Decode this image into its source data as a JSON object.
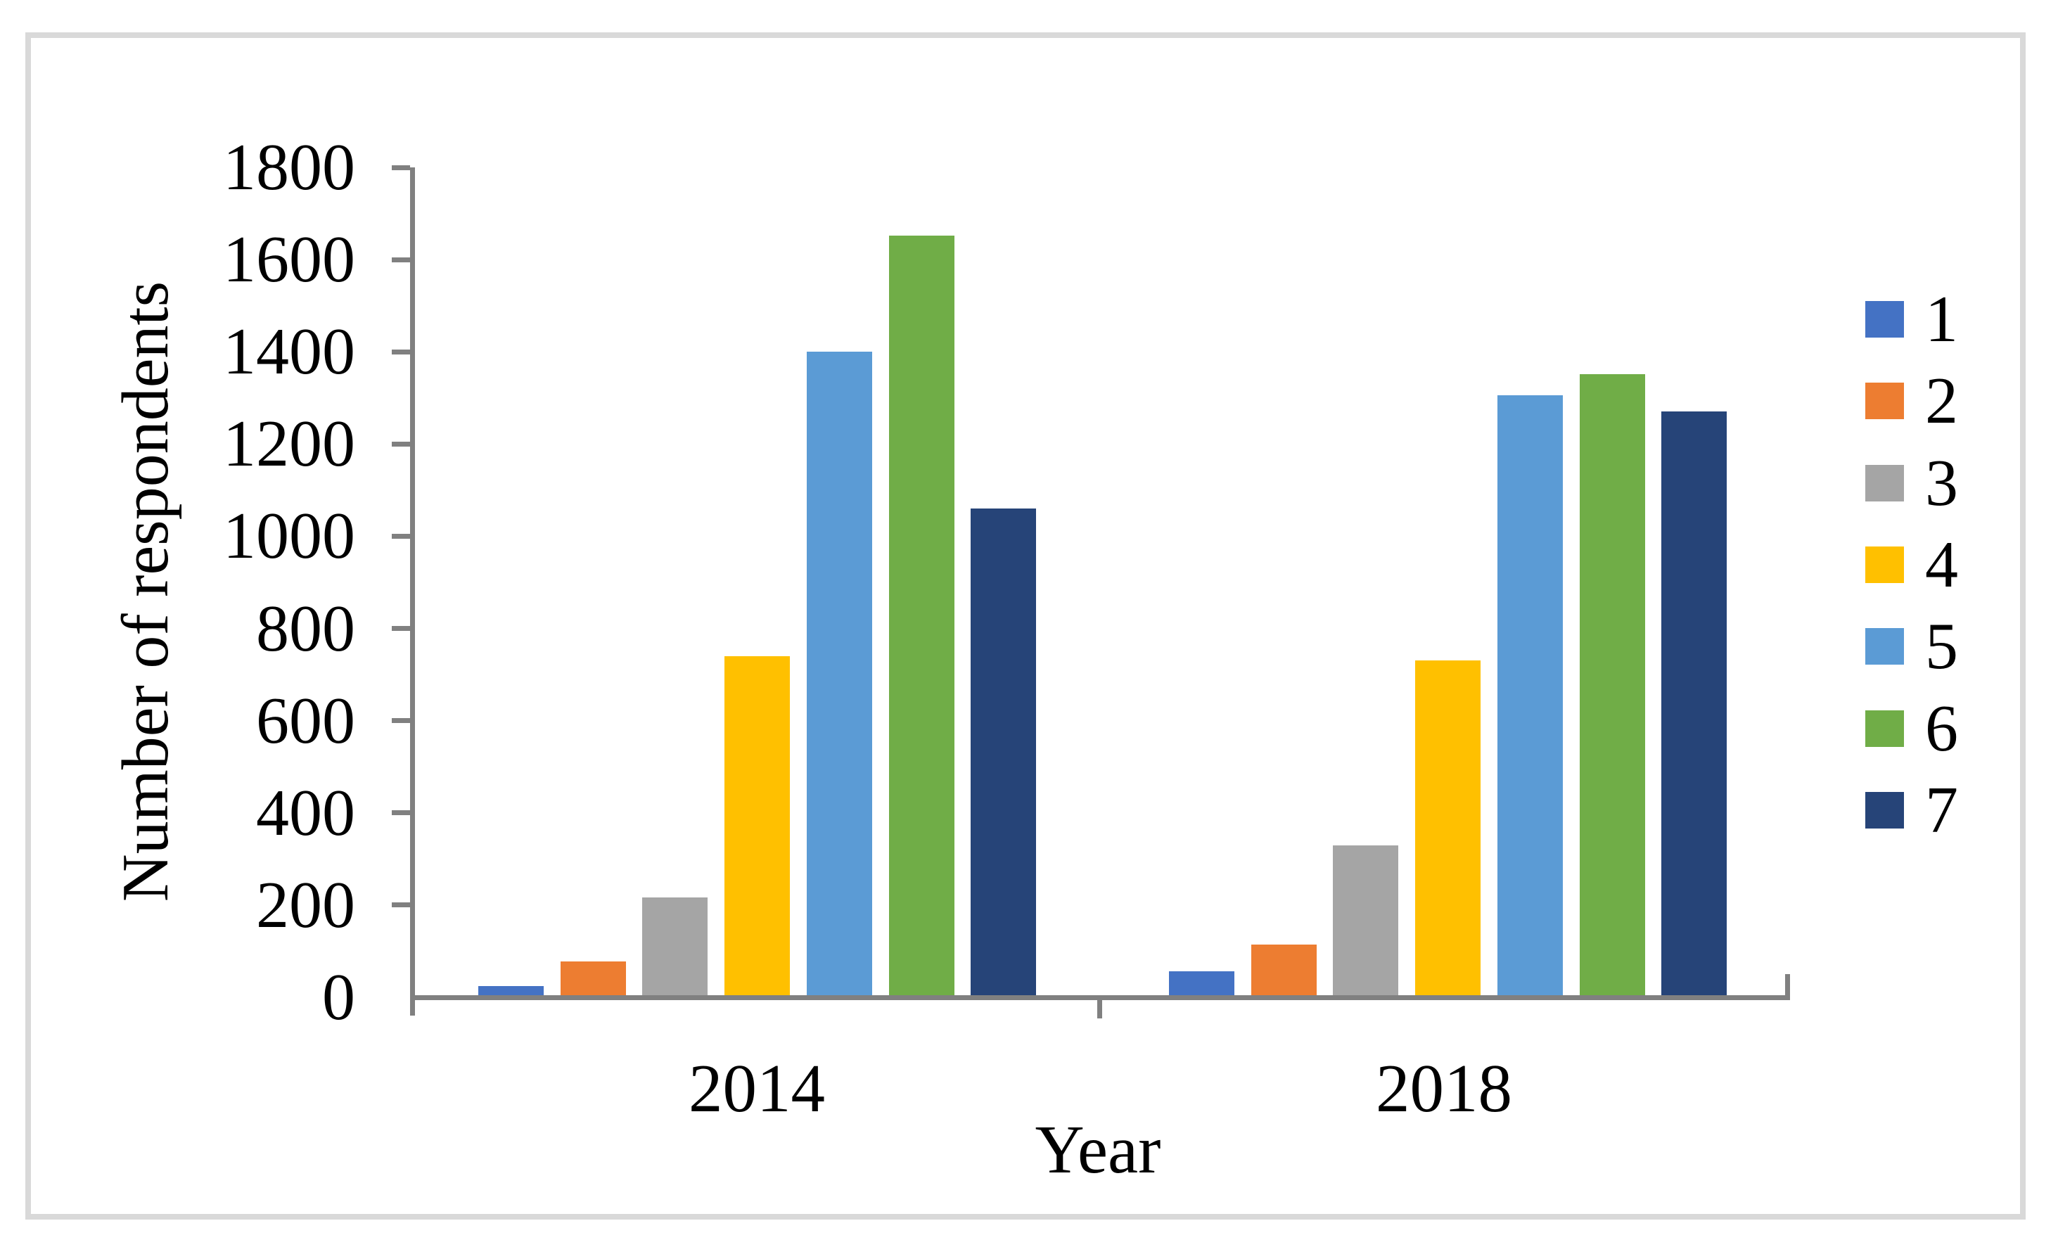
{
  "figure": {
    "background": "#FFFFFF",
    "border_color": "#D9D9D9",
    "axis_color": "#808080",
    "text_color": "#000000"
  },
  "y_axis": {
    "title": "Number of respondents",
    "tick_labels": [
      "1800",
      "1600",
      "1400",
      "1200",
      "1000",
      "800",
      "600",
      "400",
      "200",
      "0"
    ]
  },
  "x_axis": {
    "title": "Year",
    "categories": [
      "2014",
      "2018"
    ]
  },
  "chart_data": {
    "type": "bar",
    "title": "",
    "xlabel": "Year",
    "ylabel": "Number of respondents",
    "ylim": [
      0,
      1800
    ],
    "ytick_step": 200,
    "grid": false,
    "legend_position": "right",
    "categories": [
      "2014",
      "2018"
    ],
    "series": [
      {
        "name": "1",
        "color": "#4472C4",
        "values": [
          25,
          57
        ]
      },
      {
        "name": "2",
        "color": "#ED7D31",
        "values": [
          78,
          115
        ]
      },
      {
        "name": "3",
        "color": "#A5A5A5",
        "values": [
          217,
          330
        ]
      },
      {
        "name": "4",
        "color": "#FFC000",
        "values": [
          740,
          730
        ]
      },
      {
        "name": "5",
        "color": "#5B9BD5",
        "values": [
          1400,
          1305
        ]
      },
      {
        "name": "6",
        "color": "#70AD47",
        "values": [
          1652,
          1352
        ]
      },
      {
        "name": "7",
        "color": "#264478",
        "values": [
          1060,
          1270
        ]
      }
    ]
  }
}
